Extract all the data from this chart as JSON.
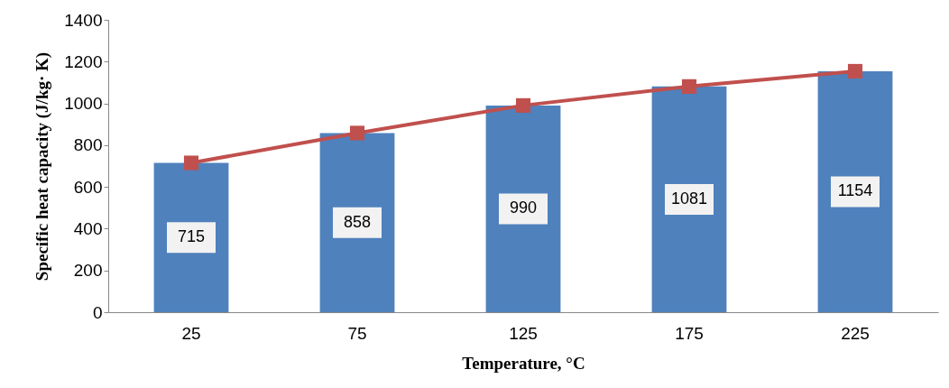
{
  "chart_data": {
    "type": "bar",
    "xlabel": "Temperature, °C",
    "ylabel": "Specific heat capacity (J/kg· K)",
    "categories": [
      "25",
      "75",
      "125",
      "175",
      "225"
    ],
    "series": [
      {
        "color": "#4f81bd",
        "values": [
          715,
          858,
          990,
          1081,
          1154
        ],
        "value_labels": [
          "715",
          "858",
          "990",
          "1081",
          "1154"
        ]
      },
      {
        "type": "line",
        "color": "#c0504d",
        "values": [
          715,
          858,
          990,
          1081,
          1154
        ],
        "marker": "square"
      }
    ],
    "ylim": [
      0,
      1400
    ],
    "yticks": [
      0,
      200,
      400,
      600,
      800,
      1000,
      1200,
      1400
    ],
    "grid": false
  }
}
